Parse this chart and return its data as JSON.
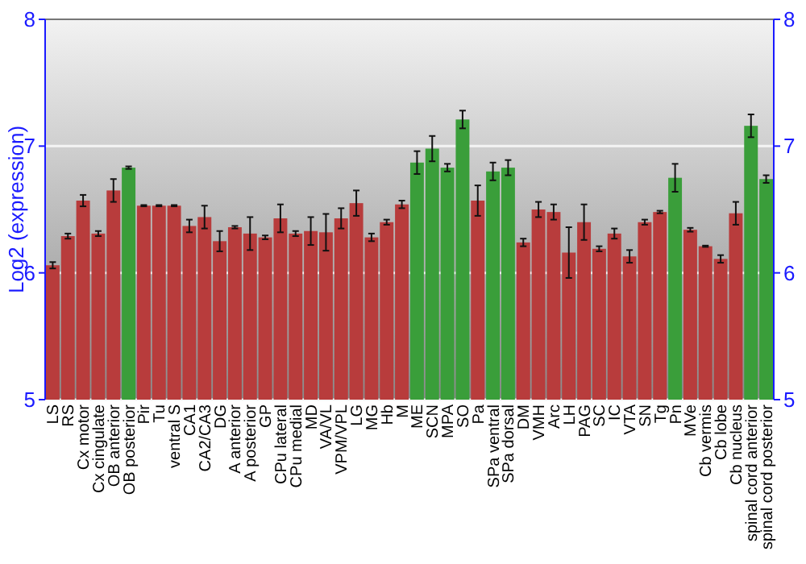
{
  "chart_data": {
    "type": "bar",
    "ylabel": "Log2 (expression)",
    "categories": [
      "LS",
      "RS",
      "Cx motor",
      "Cx cingulate",
      "OB anterior",
      "OB posterior",
      "Pir",
      "Tu",
      "ventral S",
      "CA1",
      "CA2/CA3",
      "DG",
      "A anterior",
      "A posterior",
      "GP",
      "CPu lateral",
      "CPu medial",
      "MD",
      "VA/VL",
      "VPM/VPL",
      "LG",
      "MG",
      "Hb",
      "M",
      "ME",
      "SCN",
      "MPA",
      "SO",
      "Pa",
      "SPa ventral",
      "SPa dorsal",
      "DM",
      "VMH",
      "Arc",
      "LH",
      "PAG",
      "SC",
      "IC",
      "VTA",
      "SN",
      "Tg",
      "Pn",
      "MVe",
      "Cb vermis",
      "Cb lobe",
      "Cb nucleus",
      "spinal cord anterior",
      "spinal cord posterior"
    ],
    "values": [
      6.06,
      6.29,
      6.57,
      6.31,
      6.65,
      6.83,
      6.53,
      6.53,
      6.53,
      6.37,
      6.44,
      6.25,
      6.36,
      6.31,
      6.28,
      6.43,
      6.31,
      6.33,
      6.32,
      6.43,
      6.55,
      6.28,
      6.4,
      6.54,
      6.87,
      6.98,
      6.83,
      7.21,
      6.57,
      6.8,
      6.83,
      6.24,
      6.5,
      6.48,
      6.16,
      6.4,
      6.19,
      6.31,
      6.13,
      6.4,
      6.48,
      6.75,
      6.34,
      6.21,
      6.11,
      6.47,
      7.16,
      6.74
    ],
    "errors": [
      0.025,
      0.02,
      0.045,
      0.02,
      0.09,
      0.01,
      0.005,
      0.005,
      0.005,
      0.05,
      0.09,
      0.08,
      0.01,
      0.13,
      0.015,
      0.11,
      0.02,
      0.11,
      0.145,
      0.08,
      0.1,
      0.03,
      0.02,
      0.03,
      0.09,
      0.1,
      0.03,
      0.07,
      0.12,
      0.07,
      0.06,
      0.03,
      0.06,
      0.06,
      0.2,
      0.14,
      0.02,
      0.04,
      0.05,
      0.02,
      0.01,
      0.11,
      0.015,
      0.005,
      0.03,
      0.09,
      0.09,
      0.03
    ],
    "colors": [
      "#b83c3c",
      "#b83c3c",
      "#b83c3c",
      "#b83c3c",
      "#b83c3c",
      "#3a9e3a",
      "#b83c3c",
      "#b83c3c",
      "#b83c3c",
      "#b83c3c",
      "#b83c3c",
      "#b83c3c",
      "#b83c3c",
      "#b83c3c",
      "#b83c3c",
      "#b83c3c",
      "#b83c3c",
      "#b83c3c",
      "#b83c3c",
      "#b83c3c",
      "#b83c3c",
      "#b83c3c",
      "#b83c3c",
      "#b83c3c",
      "#3a9e3a",
      "#3a9e3a",
      "#3a9e3a",
      "#3a9e3a",
      "#b83c3c",
      "#3a9e3a",
      "#3a9e3a",
      "#b83c3c",
      "#b83c3c",
      "#b83c3c",
      "#b83c3c",
      "#b83c3c",
      "#b83c3c",
      "#b83c3c",
      "#b83c3c",
      "#b83c3c",
      "#b83c3c",
      "#3a9e3a",
      "#b83c3c",
      "#b83c3c",
      "#b83c3c",
      "#b83c3c",
      "#3a9e3a",
      "#3a9e3a"
    ],
    "ylim": [
      5,
      8
    ],
    "yticks": [
      5,
      6,
      7,
      8
    ],
    "y2lim": [
      5,
      8
    ],
    "y2ticks": [
      5,
      6,
      7,
      8
    ],
    "grid": "y"
  }
}
